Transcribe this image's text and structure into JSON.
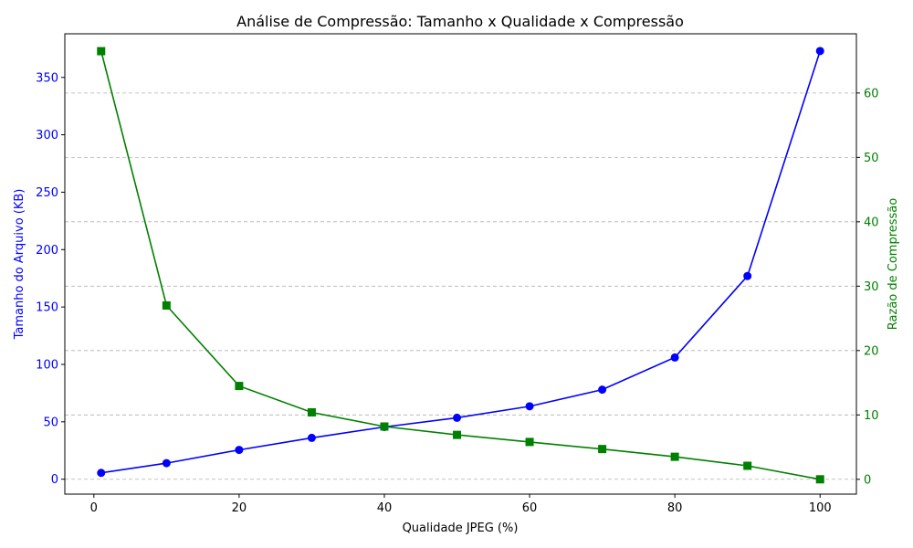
{
  "chart_data": {
    "type": "line",
    "title": "Análise de Compressão: Tamanho x Qualidade x Compressão",
    "xlabel": "Qualidade JPEG (%)",
    "ylabel_left": "Tamanho do Arquivo (KB)",
    "ylabel_right": "Razão de Compressão",
    "x": [
      1,
      10,
      20,
      30,
      40,
      50,
      60,
      70,
      80,
      90,
      100
    ],
    "xlim": [
      -4,
      105
    ],
    "xticks": [
      0,
      20,
      40,
      60,
      80,
      100
    ],
    "ylim_left": [
      -13,
      388
    ],
    "yticks_left": [
      0,
      50,
      100,
      150,
      200,
      250,
      300,
      350
    ],
    "ylim_right": [
      -2.3,
      69.2
    ],
    "yticks_right": [
      0,
      10,
      20,
      30,
      40,
      50,
      60
    ],
    "grid": "horizontal dashed on right axis",
    "series": [
      {
        "axis": "left",
        "color": "#0000ff",
        "marker": "circle",
        "values": [
          5.5,
          14,
          25.5,
          36,
          45.5,
          53.5,
          63.5,
          78,
          106,
          177,
          373
        ]
      },
      {
        "axis": "right",
        "color": "#008000",
        "marker": "square",
        "values": [
          66.5,
          27,
          14.5,
          10.4,
          8.2,
          6.9,
          5.8,
          4.7,
          3.5,
          2.1,
          0.0
        ]
      }
    ]
  }
}
